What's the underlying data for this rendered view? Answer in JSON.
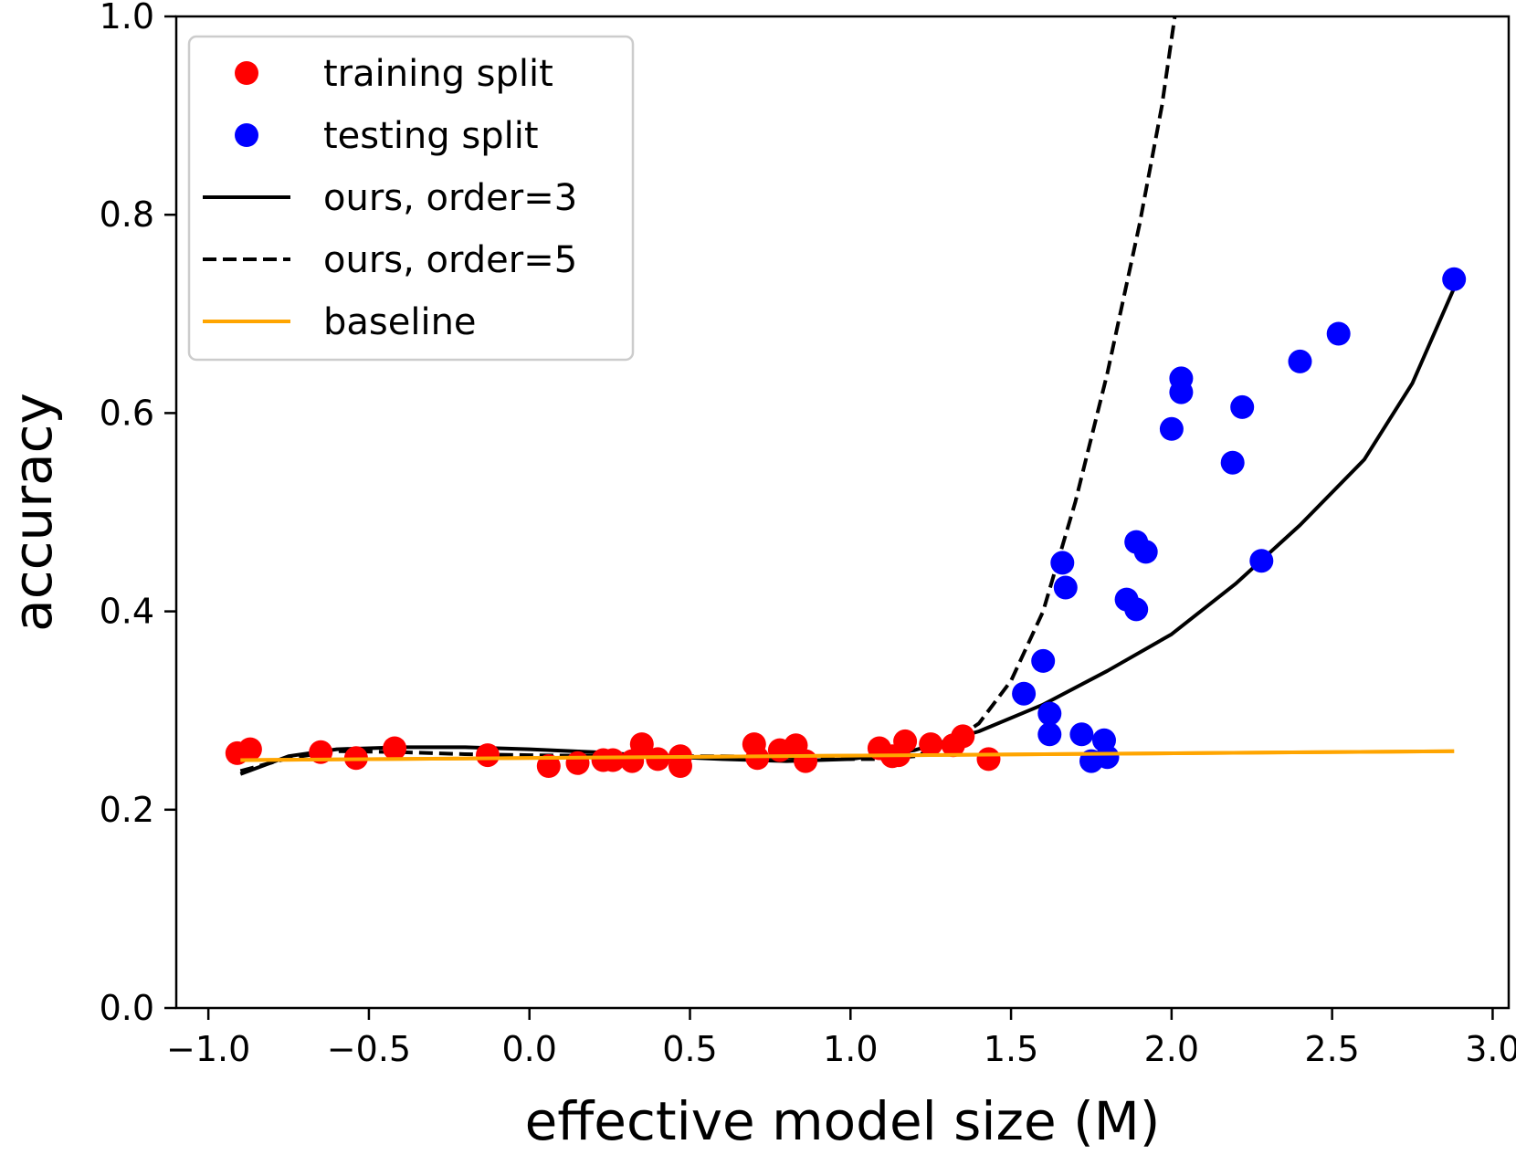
{
  "chart_data": {
    "type": "scatter",
    "title": "",
    "xlabel": "effective model size (M)",
    "ylabel": "accuracy",
    "xlim": [
      -1.1,
      3.05
    ],
    "ylim": [
      0.0,
      1.0
    ],
    "xticks": [
      -1.0,
      -0.5,
      0.0,
      0.5,
      1.0,
      1.5,
      2.0,
      2.5,
      3.0
    ],
    "xtick_labels": [
      "−1.0",
      "−0.5",
      "0.0",
      "0.5",
      "1.0",
      "1.5",
      "2.0",
      "2.5",
      "3.0"
    ],
    "yticks": [
      0.0,
      0.2,
      0.4,
      0.6,
      0.8,
      1.0
    ],
    "ytick_labels": [
      "0.0",
      "0.2",
      "0.4",
      "0.6",
      "0.8",
      "1.0"
    ],
    "grid": false,
    "legend_position": "top-left",
    "series": [
      {
        "name": "training split",
        "kind": "scatter",
        "color": "#ff0000",
        "points": [
          [
            -0.91,
            0.257
          ],
          [
            -0.87,
            0.261
          ],
          [
            -0.65,
            0.258
          ],
          [
            -0.54,
            0.252
          ],
          [
            -0.42,
            0.262
          ],
          [
            -0.13,
            0.255
          ],
          [
            0.06,
            0.244
          ],
          [
            0.15,
            0.247
          ],
          [
            0.23,
            0.25
          ],
          [
            0.26,
            0.25
          ],
          [
            0.32,
            0.249
          ],
          [
            0.35,
            0.266
          ],
          [
            0.4,
            0.251
          ],
          [
            0.47,
            0.254
          ],
          [
            0.47,
            0.244
          ],
          [
            0.7,
            0.266
          ],
          [
            0.71,
            0.252
          ],
          [
            0.78,
            0.26
          ],
          [
            0.83,
            0.265
          ],
          [
            0.86,
            0.249
          ],
          [
            1.09,
            0.262
          ],
          [
            1.13,
            0.254
          ],
          [
            1.15,
            0.255
          ],
          [
            1.17,
            0.269
          ],
          [
            1.25,
            0.266
          ],
          [
            1.32,
            0.265
          ],
          [
            1.35,
            0.274
          ],
          [
            1.43,
            0.251
          ]
        ]
      },
      {
        "name": "testing split",
        "kind": "scatter",
        "color": "#0000ff",
        "points": [
          [
            1.54,
            0.317
          ],
          [
            1.6,
            0.35
          ],
          [
            1.62,
            0.297
          ],
          [
            1.62,
            0.276
          ],
          [
            1.66,
            0.449
          ],
          [
            1.67,
            0.424
          ],
          [
            1.72,
            0.276
          ],
          [
            1.75,
            0.249
          ],
          [
            1.79,
            0.27
          ],
          [
            1.8,
            0.253
          ],
          [
            1.86,
            0.412
          ],
          [
            1.89,
            0.47
          ],
          [
            1.89,
            0.402
          ],
          [
            1.92,
            0.46
          ],
          [
            2.0,
            0.584
          ],
          [
            2.03,
            0.635
          ],
          [
            2.03,
            0.621
          ],
          [
            2.19,
            0.55
          ],
          [
            2.22,
            0.606
          ],
          [
            2.28,
            0.451
          ],
          [
            2.4,
            0.652
          ],
          [
            2.52,
            0.68
          ],
          [
            2.88,
            0.735
          ]
        ]
      },
      {
        "name": "ours, order=3",
        "kind": "line",
        "color": "#000000",
        "dash": "solid",
        "points": [
          [
            -0.9,
            0.236
          ],
          [
            -0.75,
            0.254
          ],
          [
            -0.6,
            0.261
          ],
          [
            -0.4,
            0.263
          ],
          [
            -0.2,
            0.263
          ],
          [
            0.0,
            0.261
          ],
          [
            0.2,
            0.258
          ],
          [
            0.4,
            0.254
          ],
          [
            0.6,
            0.251
          ],
          [
            0.8,
            0.249
          ],
          [
            1.0,
            0.251
          ],
          [
            1.2,
            0.26
          ],
          [
            1.4,
            0.279
          ],
          [
            1.6,
            0.306
          ],
          [
            1.8,
            0.34
          ],
          [
            2.0,
            0.377
          ],
          [
            2.2,
            0.428
          ],
          [
            2.4,
            0.487
          ],
          [
            2.6,
            0.553
          ],
          [
            2.75,
            0.63
          ],
          [
            2.88,
            0.726
          ]
        ]
      },
      {
        "name": "ours, order=5",
        "kind": "line",
        "color": "#000000",
        "dash": "dashed",
        "points": [
          [
            -0.9,
            0.239
          ],
          [
            -0.75,
            0.252
          ],
          [
            -0.6,
            0.259
          ],
          [
            -0.4,
            0.258
          ],
          [
            -0.2,
            0.256
          ],
          [
            0.0,
            0.255
          ],
          [
            0.3,
            0.254
          ],
          [
            0.6,
            0.254
          ],
          [
            0.8,
            0.253
          ],
          [
            1.0,
            0.251
          ],
          [
            1.1,
            0.251
          ],
          [
            1.2,
            0.254
          ],
          [
            1.3,
            0.265
          ],
          [
            1.4,
            0.287
          ],
          [
            1.5,
            0.33
          ],
          [
            1.6,
            0.4
          ],
          [
            1.7,
            0.51
          ],
          [
            1.8,
            0.64
          ],
          [
            1.9,
            0.79
          ],
          [
            1.97,
            0.91
          ],
          [
            2.01,
            1.0
          ]
        ]
      },
      {
        "name": "baseline",
        "kind": "line",
        "color": "#ffa500",
        "dash": "solid",
        "points": [
          [
            -0.9,
            0.25
          ],
          [
            2.88,
            0.259
          ]
        ]
      }
    ]
  }
}
